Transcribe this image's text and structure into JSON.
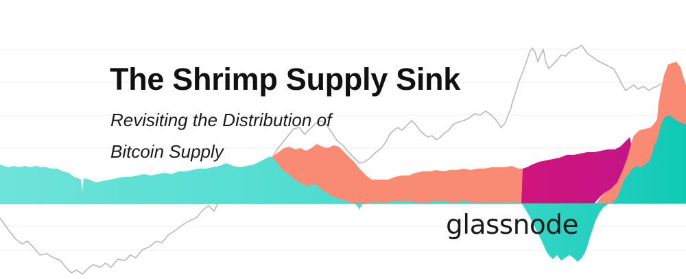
{
  "banner": {
    "title": "The Shrimp Supply Sink",
    "subtitle_line1": "Revisiting the Distribution of",
    "subtitle_line2": "Bitcoin Supply",
    "brand": "glassnode"
  },
  "colors": {
    "teal_light": "#5fe0d6",
    "teal_strong": "#11cbb8",
    "salmon": "#f98a73",
    "magenta": "#c8127f",
    "price_line": "#b8b8b8",
    "gridline": "#ececec"
  }
}
